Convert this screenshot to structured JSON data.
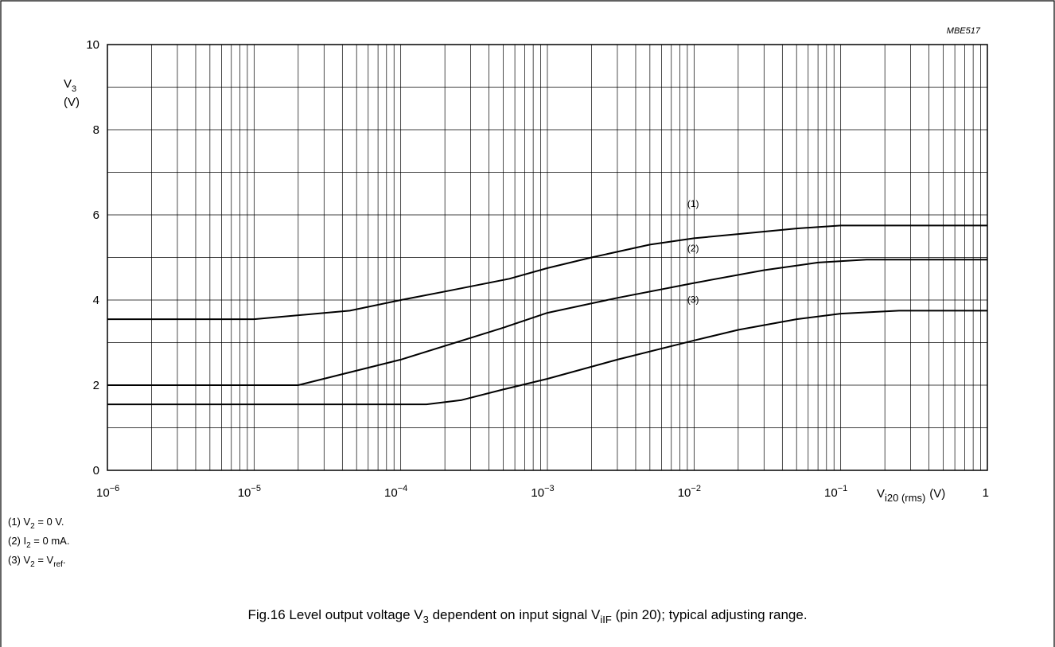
{
  "figure_code": "MBE517",
  "caption": {
    "prefix": "Fig.16  Level output voltage V",
    "sub1": "3",
    "mid": " dependent on input signal V",
    "sub2": "iIF",
    "suffix": " (pin 20); typical adjusting range."
  },
  "legend_notes": [
    {
      "num": "(1)",
      "a": "V",
      "a_sub": "2",
      "b": " = 0 V.",
      "b_sub": "",
      "c": ""
    },
    {
      "num": "(2)",
      "a": "I",
      "a_sub": "2",
      "b": " = 0 mA.",
      "b_sub": "",
      "c": ""
    },
    {
      "num": "(3)",
      "a": "V",
      "a_sub": "2",
      "b": " = V",
      "b_sub": "ref",
      "c": "."
    }
  ],
  "chart_data": {
    "type": "line",
    "x_scale": "log",
    "xlim": [
      1e-06,
      1
    ],
    "ylim": [
      0,
      10
    ],
    "grid": true,
    "ylabel": {
      "main": "V",
      "sub": "3",
      "unit": "(V)"
    },
    "xlabel": {
      "main": "V",
      "sub": "i20 (rms)",
      "unit": "(V)"
    },
    "y_ticks": [
      0,
      2,
      4,
      6,
      8,
      10
    ],
    "x_ticks": [
      {
        "base": "10",
        "exp": "−6"
      },
      {
        "base": "10",
        "exp": "−5"
      },
      {
        "base": "10",
        "exp": "−4"
      },
      {
        "base": "10",
        "exp": "−3"
      },
      {
        "base": "10",
        "exp": "−2"
      },
      {
        "base": "10",
        "exp": "−1"
      },
      {
        "base": "1",
        "exp": ""
      }
    ],
    "series": [
      {
        "name": "(1)",
        "x": [
          1e-06,
          1e-05,
          4.5e-05,
          0.0001,
          0.0002,
          0.00055,
          0.001,
          0.002,
          0.005,
          0.01,
          0.02,
          0.05,
          0.1,
          0.3,
          1
        ],
        "y": [
          3.55,
          3.55,
          3.75,
          4.0,
          4.2,
          4.5,
          4.75,
          5.0,
          5.3,
          5.45,
          5.55,
          5.68,
          5.75,
          5.75,
          5.75
        ],
        "label_x": 0.009,
        "label_y": 6.0
      },
      {
        "name": "(2)",
        "x": [
          1e-06,
          2e-05,
          0.0001,
          0.0005,
          0.001,
          0.003,
          0.01,
          0.03,
          0.07,
          0.15,
          1
        ],
        "y": [
          2.0,
          2.0,
          2.6,
          3.35,
          3.7,
          4.05,
          4.4,
          4.7,
          4.88,
          4.95,
          4.95
        ],
        "label_x": 0.009,
        "label_y": 4.95
      },
      {
        "name": "(3)",
        "x": [
          1e-06,
          0.00015,
          0.00026,
          0.0005,
          0.001,
          0.003,
          0.01,
          0.02,
          0.05,
          0.1,
          0.25,
          1
        ],
        "y": [
          1.55,
          1.55,
          1.65,
          1.9,
          2.15,
          2.6,
          3.05,
          3.3,
          3.55,
          3.68,
          3.75,
          3.75
        ],
        "label_x": 0.009,
        "label_y": 3.75
      }
    ]
  }
}
